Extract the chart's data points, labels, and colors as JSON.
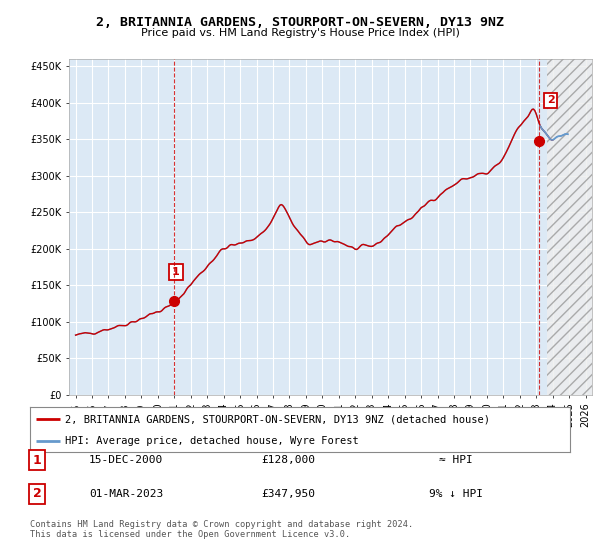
{
  "title": "2, BRITANNIA GARDENS, STOURPORT-ON-SEVERN, DY13 9NZ",
  "subtitle": "Price paid vs. HM Land Registry's House Price Index (HPI)",
  "ylim": [
    0,
    460000
  ],
  "yticks": [
    0,
    50000,
    100000,
    150000,
    200000,
    250000,
    300000,
    350000,
    400000,
    450000
  ],
  "ytick_labels": [
    "£0",
    "£50K",
    "£100K",
    "£150K",
    "£200K",
    "£250K",
    "£300K",
    "£350K",
    "£400K",
    "£450K"
  ],
  "xtick_years": [
    1995,
    1996,
    1997,
    1998,
    1999,
    2000,
    2001,
    2002,
    2003,
    2004,
    2005,
    2006,
    2007,
    2008,
    2009,
    2010,
    2011,
    2012,
    2013,
    2014,
    2015,
    2016,
    2017,
    2018,
    2019,
    2020,
    2021,
    2022,
    2023,
    2024,
    2025,
    2026
  ],
  "xlim_left": 1994.6,
  "xlim_right": 2026.4,
  "plot_bg_color": "#dce9f5",
  "fig_bg_color": "#ffffff",
  "grid_color": "#ffffff",
  "sale_color": "#cc0000",
  "hpi_color": "#6699cc",
  "vline_color": "#cc0000",
  "hatch_color": "#aaaaaa",
  "sale1_x": 2001.0,
  "sale1_y": 128000,
  "sale2_x": 2023.17,
  "sale2_y": 347950,
  "legend_line1": "2, BRITANNIA GARDENS, STOURPORT-ON-SEVERN, DY13 9NZ (detached house)",
  "legend_line2": "HPI: Average price, detached house, Wyre Forest",
  "table_row1_num": "1",
  "table_row1_date": "15-DEC-2000",
  "table_row1_price": "£128,000",
  "table_row1_hpi": "≈ HPI",
  "table_row2_num": "2",
  "table_row2_date": "01-MAR-2023",
  "table_row2_price": "£347,950",
  "table_row2_hpi": "9% ↓ HPI",
  "footer": "Contains HM Land Registry data © Crown copyright and database right 2024.\nThis data is licensed under the Open Government Licence v3.0."
}
